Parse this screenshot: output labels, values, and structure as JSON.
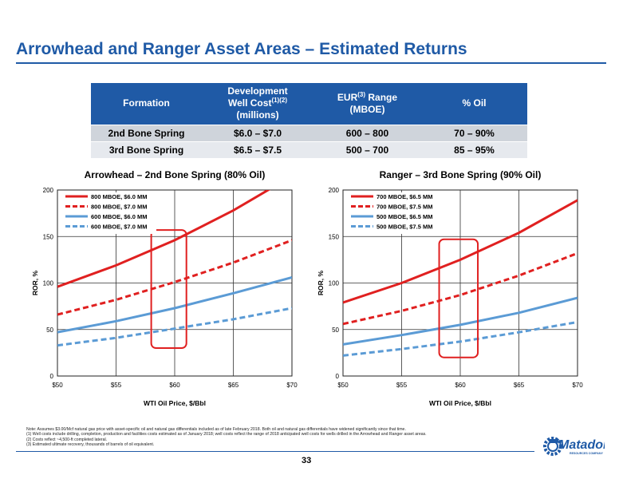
{
  "header": {
    "title": "Arrowhead and Ranger Asset Areas – Estimated Returns"
  },
  "table": {
    "headers": [
      {
        "lines": [
          "Formation"
        ]
      },
      {
        "lines": [
          "Development",
          "Well Cost",
          "(millions)"
        ],
        "sup": "(1)(2)"
      },
      {
        "lines": [
          "EUR",
          "Range",
          "(MBOE)"
        ],
        "sup": "(3)"
      },
      {
        "lines": [
          "% Oil"
        ]
      }
    ],
    "rows": [
      [
        "2nd Bone Spring",
        "$6.0 – $7.0",
        "600 – 800",
        "70 – 90%"
      ],
      [
        "3rd Bone Spring",
        "$6.5 – $7.5",
        "500 – 700",
        "85 – 95%"
      ]
    ]
  },
  "chart_data": [
    {
      "type": "line",
      "title": "Arrowhead – 2nd Bone Spring (80% Oil)",
      "xlabel": "WTI Oil Price, $/Bbl",
      "ylabel": "ROR, %",
      "xlim": [
        50,
        70
      ],
      "ylim": [
        0,
        200
      ],
      "x_ticks": [
        50,
        55,
        60,
        65,
        70
      ],
      "x_tick_labels": [
        "$50",
        "$55",
        "$60",
        "$65",
        "$70"
      ],
      "y_ticks": [
        0,
        50,
        100,
        150,
        200
      ],
      "grid": true,
      "legend": "top-left",
      "highlight_box": {
        "x": [
          58,
          61
        ],
        "y": [
          30,
          157
        ],
        "color": "#e02020"
      },
      "x": [
        50,
        55,
        60,
        65,
        70
      ],
      "series": [
        {
          "name": "800 MBOE, $6.0 MM",
          "color": "#e02020",
          "dash": false,
          "values": [
            96,
            119,
            146,
            178,
            215
          ]
        },
        {
          "name": "800 MBOE, $7.0 MM",
          "color": "#e02020",
          "dash": true,
          "values": [
            66,
            82,
            101,
            122,
            146
          ]
        },
        {
          "name": "600 MBOE, $6.0 MM",
          "color": "#5b9bd5",
          "dash": false,
          "values": [
            47,
            59,
            73,
            89,
            106
          ]
        },
        {
          "name": "600 MBOE, $7.0 MM",
          "color": "#5b9bd5",
          "dash": true,
          "values": [
            33,
            41,
            51,
            61,
            73
          ]
        }
      ]
    },
    {
      "type": "line",
      "title": "Ranger – 3rd Bone Spring (90% Oil)",
      "xlabel": "WTI Oil Price, $/Bbl",
      "ylabel": "ROR, %",
      "xlim": [
        50,
        70
      ],
      "ylim": [
        0,
        200
      ],
      "x_ticks": [
        50,
        55,
        60,
        65,
        70
      ],
      "x_tick_labels": [
        "$50",
        "$55",
        "$60",
        "$65",
        "$70"
      ],
      "y_ticks": [
        0,
        50,
        100,
        150,
        200
      ],
      "grid": true,
      "legend": "top-left",
      "highlight_box": {
        "x": [
          58.2,
          61.5
        ],
        "y": [
          20,
          147
        ],
        "color": "#e02020"
      },
      "x": [
        50,
        55,
        60,
        65,
        70
      ],
      "series": [
        {
          "name": "700 MBOE, $6.5 MM",
          "color": "#e02020",
          "dash": false,
          "values": [
            79,
            100,
            125,
            154,
            189
          ]
        },
        {
          "name": "700 MBOE, $7.5 MM",
          "color": "#e02020",
          "dash": true,
          "values": [
            56,
            70,
            87,
            108,
            132
          ]
        },
        {
          "name": "500 MBOE, $6.5 MM",
          "color": "#5b9bd5",
          "dash": false,
          "values": [
            34,
            44,
            55,
            68,
            84
          ]
        },
        {
          "name": "500 MBOE, $7.5 MM",
          "color": "#5b9bd5",
          "dash": true,
          "values": [
            22,
            29,
            37,
            47,
            58
          ]
        }
      ]
    }
  ],
  "footer": {
    "notes": [
      "Note: Assumes $3.00/Mcf natural gas price with asset-specific oil and natural gas differentials included as of late February 2018. Both oil and natural gas differentials have widened significantly since that time.",
      "(1)     Well costs include drilling, completion, production and facilities costs estimated as of January 2018; well costs reflect the range of 2018 anticipated well costs for wells drilled in the Arrowhead and Ranger asset areas.",
      "(2)     Costs reflect ~4,500-ft completed lateral.",
      "(3)     Estimated ultimate recovery, thousands of barrels of oil equivalent."
    ],
    "page_number": "33",
    "logo": {
      "name": "Matador",
      "tagline": "RESOURCES COMPANY",
      "color": "#1f5aa6"
    }
  }
}
